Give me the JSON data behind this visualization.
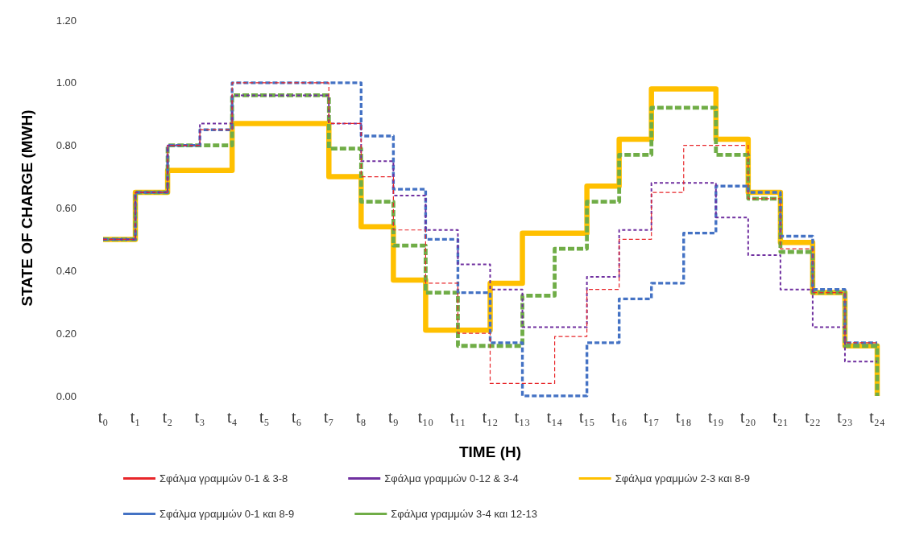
{
  "chart_data": {
    "type": "step",
    "xlabel": "TIME (H)",
    "ylabel": "STATE OF CHARGE (MWH)",
    "categories": [
      "t₀",
      "t₁",
      "t₂",
      "t₃",
      "t₄",
      "t₅",
      "t₆",
      "t₇",
      "t₈",
      "t₉",
      "t₁₀",
      "t₁₁",
      "t₁₂",
      "t₁₃",
      "t₁₄",
      "t₁₅",
      "t₁₆",
      "t₁₇",
      "t₁₈",
      "t₁₉",
      "t₂₀",
      "t₂₁",
      "t₂₂",
      "t₂₃",
      "t₂₄"
    ],
    "series": [
      {
        "name": "Σφάλμα γραμμών 0-1 & 3-8",
        "color": "#e8262a",
        "line_style": "dashed",
        "values": [
          0.5,
          0.65,
          0.8,
          0.85,
          1.0,
          1.0,
          1.0,
          0.87,
          0.7,
          0.53,
          0.36,
          0.2,
          0.04,
          0.04,
          0.19,
          0.34,
          0.5,
          0.65,
          0.8,
          0.8,
          0.63,
          0.47,
          0.33,
          0.17,
          0.17
        ]
      },
      {
        "name": "Σφάλμα γραμμών 0-12 & 3-4",
        "color": "#7030a0",
        "line_style": "dashed",
        "values": [
          0.5,
          0.65,
          0.8,
          0.87,
          0.96,
          0.96,
          0.96,
          0.87,
          0.75,
          0.64,
          0.53,
          0.42,
          0.34,
          0.22,
          0.22,
          0.38,
          0.53,
          0.68,
          0.68,
          0.57,
          0.45,
          0.34,
          0.22,
          0.11,
          0.11
        ]
      },
      {
        "name": "Σφάλμα γραμμών 2-3 και 8-9",
        "color": "#ffc000",
        "line_style": "solid",
        "values": [
          0.5,
          0.65,
          0.72,
          0.72,
          0.87,
          0.87,
          0.87,
          0.7,
          0.54,
          0.37,
          0.21,
          0.21,
          0.36,
          0.52,
          0.52,
          0.67,
          0.82,
          0.98,
          0.98,
          0.82,
          0.65,
          0.49,
          0.33,
          0.16,
          0.0
        ]
      },
      {
        "name": "Σφάλμα γραμμών 0-1 και 8-9",
        "color": "#4472c4",
        "line_style": "dashed",
        "values": [
          0.5,
          0.65,
          0.8,
          0.85,
          1.0,
          1.0,
          1.0,
          1.0,
          0.83,
          0.66,
          0.5,
          0.33,
          0.17,
          0.0,
          0.0,
          0.17,
          0.31,
          0.36,
          0.52,
          0.67,
          0.65,
          0.51,
          0.34,
          0.17,
          0.17
        ]
      },
      {
        "name": "Σφάλμα γραμμών 3-4 και 12-13",
        "color": "#70ad47",
        "line_style": "dashed",
        "values": [
          0.5,
          0.65,
          0.8,
          0.8,
          0.96,
          0.96,
          0.96,
          0.79,
          0.62,
          0.48,
          0.33,
          0.16,
          0.16,
          0.32,
          0.47,
          0.62,
          0.77,
          0.92,
          0.92,
          0.77,
          0.63,
          0.46,
          0.33,
          0.16,
          0.0
        ]
      }
    ],
    "ylim": [
      0,
      1.2
    ],
    "yticks": [
      {
        "value": 0,
        "label": "0.00"
      },
      {
        "value": 0.2,
        "label": "0.20"
      },
      {
        "value": 0.4,
        "label": "0.40"
      },
      {
        "value": 0.6,
        "label": "0.60"
      },
      {
        "value": 0.8,
        "label": "0.80"
      },
      {
        "value": 1.0,
        "label": "1.00"
      },
      {
        "value": 1.2,
        "label": "1.20"
      }
    ],
    "grid": false,
    "legend": "bottom"
  }
}
